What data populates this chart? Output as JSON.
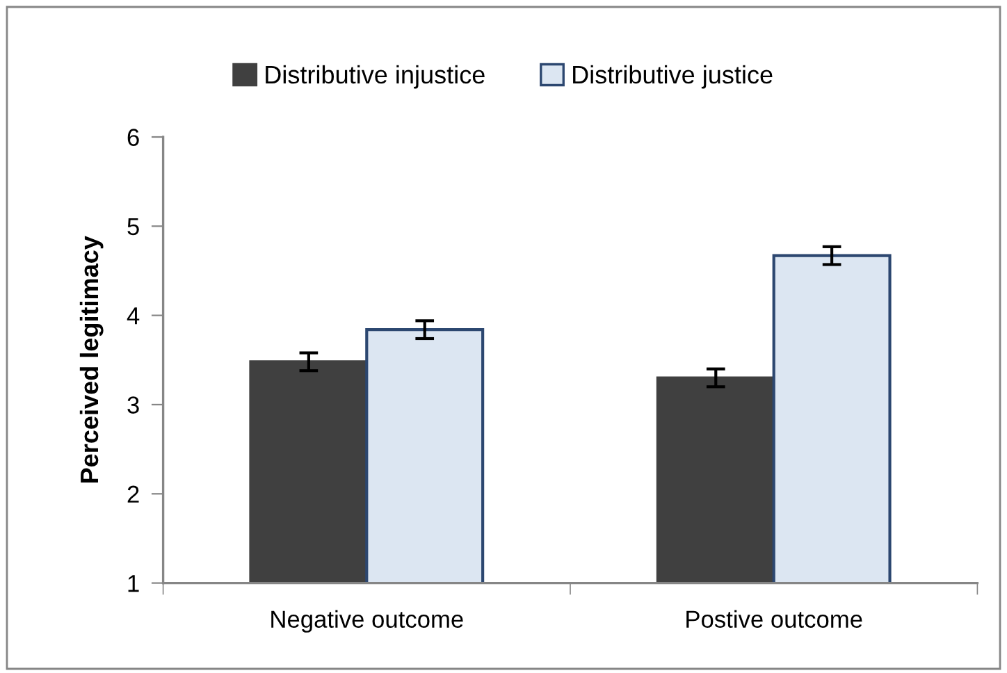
{
  "chart_data": {
    "type": "bar",
    "ylabel": "Perceived legitimacy",
    "categories": [
      "Negative outcome",
      "Postive outcome"
    ],
    "series": [
      {
        "name": "Distributive injustice",
        "color": "#404040",
        "values": [
          3.48,
          3.3
        ],
        "errors": [
          0.1,
          0.1
        ]
      },
      {
        "name": "Distributive justice",
        "color": "#dce6f2",
        "values": [
          3.84,
          4.67
        ],
        "errors": [
          0.1,
          0.1
        ]
      }
    ],
    "ylim": [
      1,
      6
    ],
    "yticks": [
      1,
      2,
      3,
      4,
      5,
      6
    ],
    "legend": "top"
  }
}
